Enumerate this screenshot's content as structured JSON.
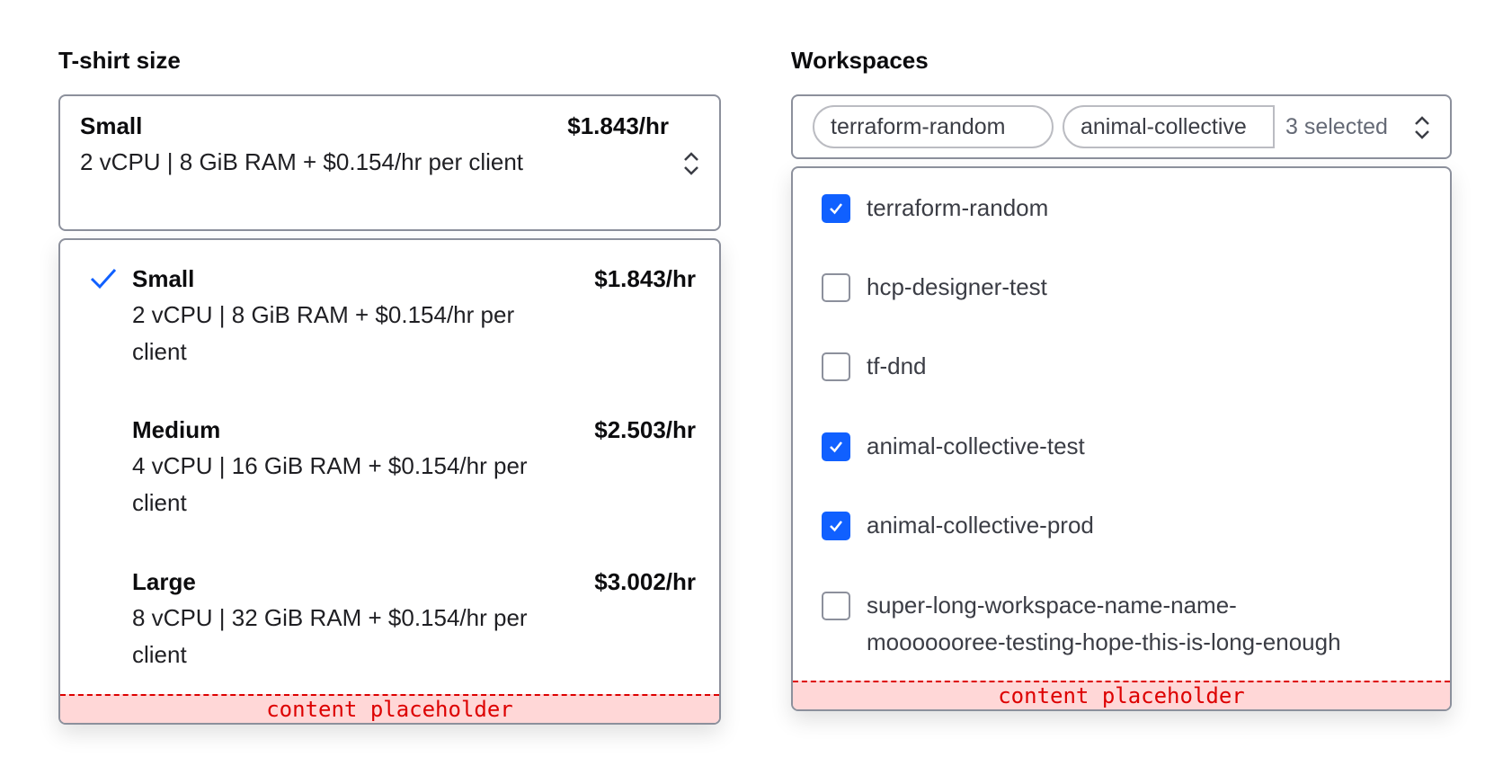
{
  "tshirt": {
    "label": "T-shirt size",
    "selected": {
      "name": "Small",
      "price": "$1.843/hr",
      "desc": "2 vCPU | 8 GiB RAM + $0.154/hr per client"
    },
    "options": [
      {
        "name": "Small",
        "price": "$1.843/hr",
        "desc": "2 vCPU | 8 GiB RAM + $0.154/hr per client",
        "selected": true
      },
      {
        "name": "Medium",
        "price": "$2.503/hr",
        "desc": "4 vCPU | 16 GiB RAM + $0.154/hr per client",
        "selected": false
      },
      {
        "name": "Large",
        "price": "$3.002/hr",
        "desc": "8 vCPU | 32 GiB RAM + $0.154/hr per client",
        "selected": false
      }
    ],
    "placeholder": "content placeholder"
  },
  "workspaces": {
    "label": "Workspaces",
    "pills": [
      "terraform-random",
      "animal-collective"
    ],
    "count": "3 selected",
    "items": [
      {
        "name": "terraform-random",
        "checked": true
      },
      {
        "name": "hcp-designer-test",
        "checked": false
      },
      {
        "name": "tf-dnd",
        "checked": false
      },
      {
        "name": "animal-collective-test",
        "checked": true
      },
      {
        "name": "animal-collective-prod",
        "checked": true
      },
      {
        "name": "super-long-workspace-name-name-mooooooree-testing-hope-this-is-long-enough",
        "checked": false
      }
    ],
    "placeholder": "content placeholder"
  },
  "colors": {
    "accent": "#1060ff",
    "border": "#8c909c",
    "placeholder_bg": "#ffd7d7",
    "placeholder_text": "#dd0000"
  }
}
